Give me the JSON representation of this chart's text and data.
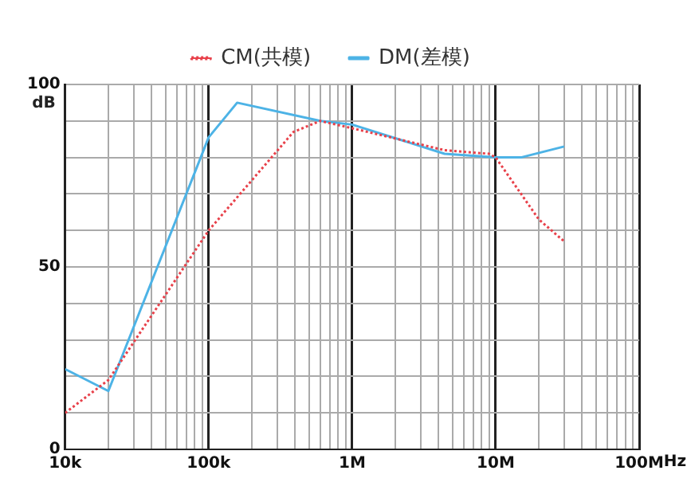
{
  "chart_data": {
    "type": "line",
    "ylabel": "dB",
    "series": [
      {
        "name": "CM(共模)",
        "color": "#e8414a",
        "line_style": "dotted",
        "x": [
          10000,
          20000,
          100000,
          390000,
          600000,
          1000000,
          4400000,
          9000000,
          10000000,
          20000000,
          30000000
        ],
        "values": [
          10,
          19,
          60,
          87,
          90,
          88,
          82,
          81,
          80,
          63,
          57
        ]
      },
      {
        "name": "DM(差模)",
        "color": "#4db3e6",
        "line_style": "solid",
        "x": [
          10000,
          20000,
          100000,
          158000,
          600000,
          1000000,
          4400000,
          10000000,
          15000000,
          30000000
        ],
        "values": [
          22,
          16,
          85.5,
          95,
          90,
          89,
          81,
          80,
          80,
          83
        ]
      }
    ],
    "xlim": [
      10000,
      100000000
    ],
    "ylim": [
      0,
      100
    ],
    "log": "x",
    "grid": true,
    "legend": "top",
    "marker": "none",
    "xticks": [
      {
        "value": 10000,
        "label": "10k"
      },
      {
        "value": 20000,
        "label": null
      },
      {
        "value": 30000,
        "label": null
      },
      {
        "value": 40000,
        "label": null
      },
      {
        "value": 50000,
        "label": null
      },
      {
        "value": 60000,
        "label": null
      },
      {
        "value": 70000,
        "label": null
      },
      {
        "value": 80000,
        "label": null
      },
      {
        "value": 90000,
        "label": null
      },
      {
        "value": 100000,
        "label": "100k"
      },
      {
        "value": 200000,
        "label": null
      },
      {
        "value": 300000,
        "label": null
      },
      {
        "value": 400000,
        "label": null
      },
      {
        "value": 500000,
        "label": null
      },
      {
        "value": 600000,
        "label": null
      },
      {
        "value": 700000,
        "label": null
      },
      {
        "value": 800000,
        "label": null
      },
      {
        "value": 900000,
        "label": null
      },
      {
        "value": 1000000,
        "label": "1M"
      },
      {
        "value": 2000000,
        "label": null
      },
      {
        "value": 3000000,
        "label": null
      },
      {
        "value": 4000000,
        "label": null
      },
      {
        "value": 5000000,
        "label": null
      },
      {
        "value": 6000000,
        "label": null
      },
      {
        "value": 7000000,
        "label": null
      },
      {
        "value": 8000000,
        "label": null
      },
      {
        "value": 9000000,
        "label": null
      },
      {
        "value": 10000000,
        "label": "10M"
      },
      {
        "value": 20000000,
        "label": null
      },
      {
        "value": 30000000,
        "label": null
      },
      {
        "value": 40000000,
        "label": null
      },
      {
        "value": 50000000,
        "label": null
      },
      {
        "value": 60000000,
        "label": null
      },
      {
        "value": 70000000,
        "label": null
      },
      {
        "value": 80000000,
        "label": null
      },
      {
        "value": 90000000,
        "label": null
      },
      {
        "value": 100000000,
        "label": "100M"
      }
    ],
    "xlabel": "Hz",
    "yticks": [
      0,
      {
        "value": 10,
        "label": null
      },
      {
        "value": 20,
        "label": null
      },
      {
        "value": 30,
        "label": null
      },
      {
        "value": 40,
        "label": null
      },
      50,
      {
        "value": 60,
        "label": null
      },
      {
        "value": 70,
        "label": null
      },
      {
        "value": 80,
        "label": null
      },
      {
        "value": 90,
        "label": null
      },
      100
    ]
  }
}
